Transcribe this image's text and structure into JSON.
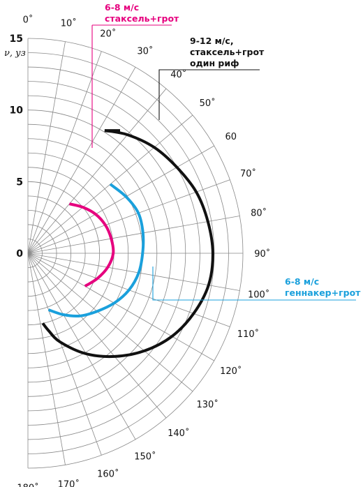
{
  "chart_data": {
    "type": "polar-line",
    "unit_label": "ν, уз",
    "radial_ticks": [
      "0",
      "5",
      "10",
      "15"
    ],
    "radial_max": 15,
    "angle_ticks": [
      "0˚",
      "10˚",
      "20˚",
      "30˚",
      "40˚",
      "50˚",
      "60",
      "70˚",
      "80˚",
      "90˚",
      "100˚",
      "110˚",
      "120˚",
      "130˚",
      "140˚",
      "150˚",
      "160˚",
      "170˚",
      "180˚"
    ],
    "series": [
      {
        "name_line1": "6-8 м/с",
        "name_line2": "стаксель+грот",
        "color": "#e6007e",
        "points": [
          [
            40,
            4.5
          ],
          [
            50,
            5.0
          ],
          [
            60,
            5.45
          ],
          [
            70,
            5.75
          ],
          [
            80,
            5.9
          ],
          [
            90,
            5.95
          ],
          [
            100,
            5.65
          ],
          [
            110,
            5.15
          ],
          [
            120,
            4.6
          ]
        ]
      },
      {
        "name_line1": "9-12 м/с,",
        "name_line2": "стаксель+грот",
        "name_line3": "один риф",
        "color": "#111111",
        "points": [
          [
            32,
            10.1
          ],
          [
            40,
            10.8
          ],
          [
            50,
            11.5
          ],
          [
            60,
            12.0
          ],
          [
            70,
            12.5
          ],
          [
            80,
            12.75
          ],
          [
            90,
            12.9
          ],
          [
            100,
            12.8
          ],
          [
            110,
            12.3
          ],
          [
            120,
            11.6
          ],
          [
            130,
            10.6
          ],
          [
            140,
            9.4
          ],
          [
            150,
            8.1
          ],
          [
            160,
            6.6
          ],
          [
            165,
            5.6
          ],
          [
            168,
            5.0
          ]
        ]
      },
      {
        "name_line1": "6-8 м/с",
        "name_line2": "геннакер+грот",
        "color": "#1aa0dc",
        "points": [
          [
            50,
            7.5
          ],
          [
            60,
            7.9
          ],
          [
            70,
            8.2
          ],
          [
            80,
            8.15
          ],
          [
            90,
            8.0
          ],
          [
            100,
            7.85
          ],
          [
            110,
            7.5
          ],
          [
            120,
            6.95
          ],
          [
            130,
            6.3
          ],
          [
            140,
            5.7
          ],
          [
            150,
            4.95
          ],
          [
            160,
            4.2
          ]
        ]
      }
    ],
    "grid": true
  }
}
